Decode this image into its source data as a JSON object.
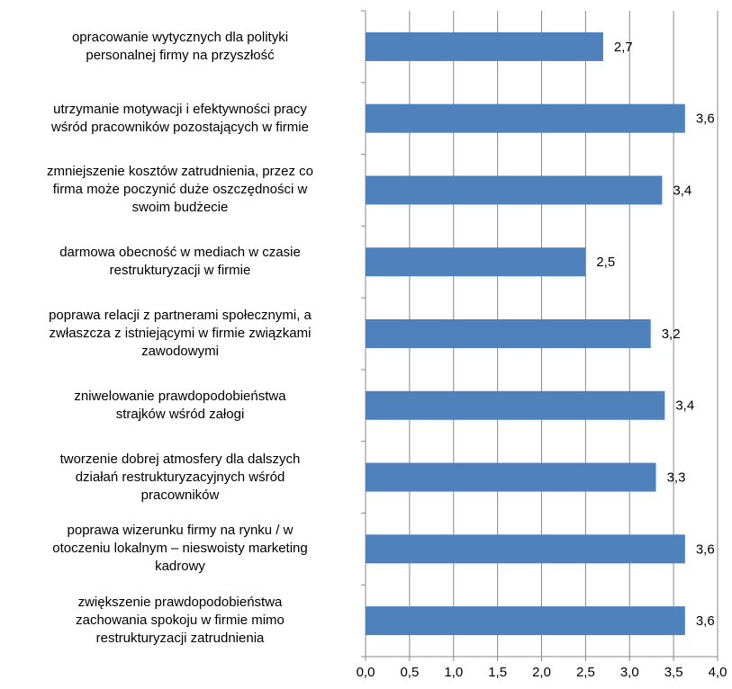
{
  "chart_data": {
    "type": "barh",
    "categories": [
      "opracowanie wytycznych dla polityki\npersonalnej firmy na przyszłość",
      "utrzymanie motywacji i efektywności pracy\nwśród pracowników pozostających w firmie",
      "zmniejszenie kosztów zatrudnienia, przez co\nfirma może poczynić duże oszczędności w\nswoim budżecie",
      "darmowa obecność w mediach w czasie\nrestrukturyzacji w firmie",
      "poprawa relacji z partnerami społecznymi, a\nzwłaszcza z istniejącymi w firmie związkami\nzawodowymi",
      "zniwelowanie prawdopodobieństwa\nstrajków wśród załogi",
      "tworzenie dobrej atmosfery dla dalszych\ndziałań restrukturyzacyjnych wśród\npracowników",
      "poprawa wizerunku firmy na rynku / w\notoczeniu lokalnym – nieswoisty marketing\nkadrowy",
      "zwiększenie prawdopodobieństwa\nzachowania spokoju w firmie mimo\nrestrukturyzacji zatrudnienia"
    ],
    "values": [
      2.7,
      3.63,
      3.37,
      2.5,
      3.24,
      3.4,
      3.3,
      3.63,
      3.63
    ],
    "value_labels": [
      "2,7",
      "3,6",
      "3,4",
      "2,5",
      "3,2",
      "3,4",
      "3,3",
      "3,6",
      "3,6"
    ],
    "color": "#4f81bd",
    "xlim": [
      0,
      4
    ],
    "xticks": [
      {
        "value": 0,
        "label": "0,0"
      },
      {
        "value": 0.5,
        "label": "0,5"
      },
      {
        "value": 1,
        "label": "1,0"
      },
      {
        "value": 1.5,
        "label": "1,5"
      },
      {
        "value": 2,
        "label": "2,0"
      },
      {
        "value": 2.5,
        "label": "2,5"
      },
      {
        "value": 3,
        "label": "3,0"
      },
      {
        "value": 3.5,
        "label": "3,5"
      },
      {
        "value": 4,
        "label": "4,0"
      }
    ],
    "grid": true
  }
}
